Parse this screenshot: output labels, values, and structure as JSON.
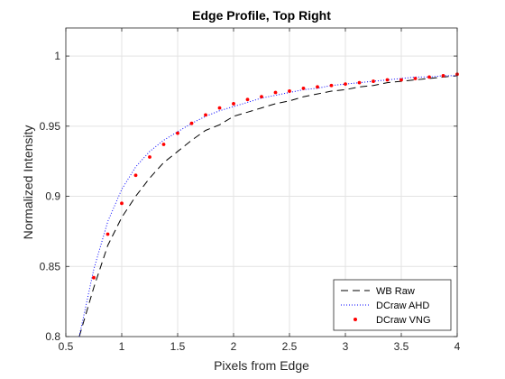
{
  "chart_data": {
    "type": "line",
    "title": "Edge Profile, Top Right",
    "xlabel": "Pixels from Edge",
    "ylabel": "Normalized Intensity",
    "xlim": [
      0.5,
      4
    ],
    "ylim": [
      0.8,
      1.02
    ],
    "xticks": [
      0.5,
      1,
      1.5,
      2,
      2.5,
      3,
      3.5,
      4
    ],
    "xtick_labels": [
      "0.5",
      "1",
      "1.5",
      "2",
      "2.5",
      "3",
      "3.5",
      "4"
    ],
    "yticks": [
      0.8,
      0.85,
      0.9,
      0.95,
      1
    ],
    "ytick_labels": [
      "0.8",
      "0.85",
      "0.9",
      "0.95",
      "1"
    ],
    "grid": true,
    "legend_position": "bottom-right",
    "series": [
      {
        "name": "WB Raw",
        "style": "dashed",
        "color": "#000000",
        "x": [
          0.62,
          0.75,
          0.875,
          1.0,
          1.125,
          1.25,
          1.375,
          1.5,
          1.625,
          1.75,
          1.875,
          2.0,
          2.125,
          2.25,
          2.375,
          2.5,
          2.625,
          2.75,
          2.875,
          3.0,
          3.125,
          3.25,
          3.375,
          3.5,
          3.625,
          3.75,
          3.875,
          4.0
        ],
        "y": [
          0.8,
          0.835,
          0.865,
          0.885,
          0.9,
          0.913,
          0.924,
          0.932,
          0.94,
          0.947,
          0.951,
          0.957,
          0.96,
          0.963,
          0.966,
          0.968,
          0.971,
          0.973,
          0.975,
          0.976,
          0.978,
          0.979,
          0.981,
          0.982,
          0.983,
          0.984,
          0.985,
          0.986
        ]
      },
      {
        "name": "DCraw AHD",
        "style": "dotted",
        "color": "#0000ff",
        "x": [
          0.62,
          0.75,
          0.875,
          1.0,
          1.125,
          1.25,
          1.375,
          1.5,
          1.625,
          1.75,
          1.875,
          2.0,
          2.125,
          2.25,
          2.375,
          2.5,
          2.625,
          2.75,
          2.875,
          3.0,
          3.125,
          3.25,
          3.375,
          3.5,
          3.625,
          3.75,
          3.875,
          4.0
        ],
        "y": [
          0.8,
          0.848,
          0.882,
          0.905,
          0.921,
          0.932,
          0.94,
          0.946,
          0.952,
          0.957,
          0.961,
          0.964,
          0.967,
          0.97,
          0.972,
          0.974,
          0.976,
          0.977,
          0.979,
          0.98,
          0.981,
          0.982,
          0.983,
          0.984,
          0.985,
          0.985,
          0.986,
          0.986
        ]
      },
      {
        "name": "DCraw VNG",
        "style": "markers",
        "color": "#ff0000",
        "x": [
          0.75,
          0.875,
          1.0,
          1.125,
          1.25,
          1.375,
          1.5,
          1.625,
          1.75,
          1.875,
          2.0,
          2.125,
          2.25,
          2.375,
          2.5,
          2.625,
          2.75,
          2.875,
          3.0,
          3.125,
          3.25,
          3.375,
          3.5,
          3.625,
          3.75,
          3.875,
          4.0
        ],
        "y": [
          0.842,
          0.873,
          0.895,
          0.915,
          0.928,
          0.937,
          0.945,
          0.952,
          0.958,
          0.963,
          0.966,
          0.969,
          0.971,
          0.974,
          0.975,
          0.977,
          0.978,
          0.979,
          0.98,
          0.981,
          0.982,
          0.983,
          0.983,
          0.984,
          0.985,
          0.986,
          0.987
        ]
      }
    ]
  }
}
